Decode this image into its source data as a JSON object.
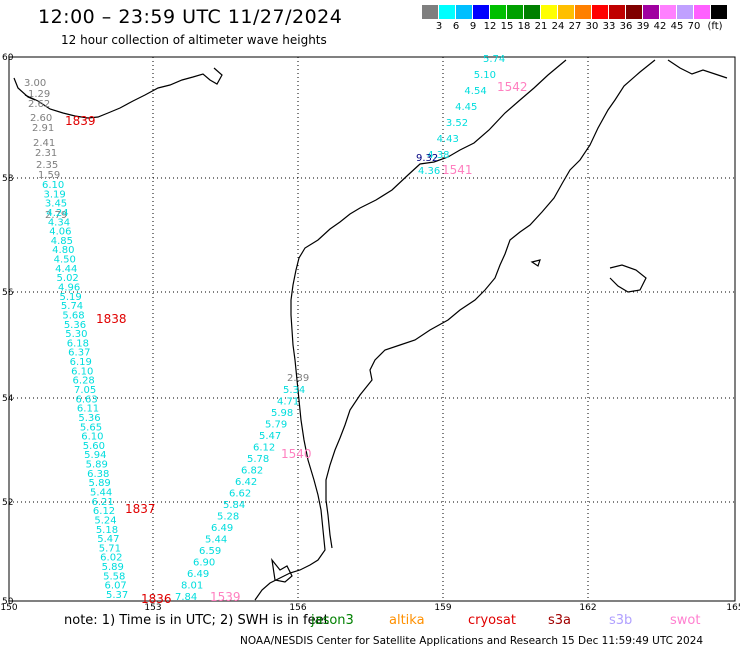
{
  "title": "12:00 – 23:59 UTC 11/27/2024",
  "subtitle": "12 hour collection of altimeter wave heights",
  "colorbar": {
    "colors": [
      "#7f7f7f",
      "#00ffff",
      "#00bfff",
      "#0000ff",
      "#00bf00",
      "#00a000",
      "#008000",
      "#ffff00",
      "#ffbf00",
      "#ff8000",
      "#ff0000",
      "#c00000",
      "#800000",
      "#a000a0",
      "#ff80ff",
      "#c0a0ff",
      "#ff60ff",
      "#000000"
    ],
    "labels": [
      "3",
      "6",
      "9",
      "12",
      "15",
      "18",
      "21",
      "24",
      "27",
      "30",
      "33",
      "36",
      "39",
      "42",
      "45",
      "70",
      "(ft)"
    ]
  },
  "axes": {
    "x_ticks": [
      "150",
      "153",
      "156",
      "159",
      "162",
      "165"
    ],
    "y_ticks": [
      "50",
      "52",
      "54",
      "56",
      "58",
      "60"
    ]
  },
  "tracks": [
    {
      "color": "#7f7f7f",
      "values": [
        "3.00",
        "1.29",
        "2.62",
        "2.60",
        "2.91",
        "2.41",
        "2.31",
        "2.35",
        "1.59",
        "2.79",
        "2.39"
      ]
    },
    {
      "color": "#00dddd",
      "values": [
        "6.10",
        "3.19",
        "3.45",
        "4.24",
        "4.34",
        "4.06",
        "4.85",
        "4.80",
        "4.50",
        "4.44",
        "5.02",
        "4.96",
        "5.19",
        "5.74",
        "5.68",
        "5.36",
        "5.30",
        "6.18",
        "6.37",
        "6.19",
        "6.10",
        "6.28",
        "7.05",
        "6.63",
        "6.11",
        "5.36",
        "5.65",
        "6.10",
        "5.60",
        "5.94",
        "5.89",
        "6.38",
        "5.89",
        "5.44",
        "6.21",
        "6.12",
        "5.24",
        "5.18",
        "5.47",
        "5.71",
        "6.02",
        "5.89",
        "5.58",
        "6.07",
        "5.37",
        "5.74",
        "5.10",
        "4.54",
        "4.45",
        "3.52",
        "4.43",
        "4.38",
        "4.36",
        "5.34",
        "4.71",
        "5.98",
        "5.79",
        "5.47",
        "6.12",
        "5.78",
        "6.82",
        "6.42",
        "6.62",
        "5.84",
        "5.28",
        "6.49",
        "5.44",
        "6.59",
        "6.90",
        "6.49",
        "8.01",
        "7.84"
      ]
    },
    {
      "color": "#000080",
      "values": [
        "9.32"
      ]
    }
  ],
  "time_markers": [
    {
      "label": "1839",
      "color": "#e00000"
    },
    {
      "label": "1838",
      "color": "#e00000"
    },
    {
      "label": "1837",
      "color": "#e00000"
    },
    {
      "label": "1836",
      "color": "#e00000"
    },
    {
      "label": "1542",
      "color": "#ff80c0"
    },
    {
      "label": "1541",
      "color": "#ff80c0"
    },
    {
      "label": "1540",
      "color": "#ff80c0"
    },
    {
      "label": "1539",
      "color": "#ff80c0"
    }
  ],
  "footer": {
    "note": "note:  1) Time is in UTC;  2) SWH is in feet",
    "satellites": [
      {
        "name": "jason3",
        "color": "#008000"
      },
      {
        "name": "altika",
        "color": "#ff9000"
      },
      {
        "name": "cryosat",
        "color": "#e00000"
      },
      {
        "name": "s3a",
        "color": "#a00000"
      },
      {
        "name": "s3b",
        "color": "#b0a0ff"
      },
      {
        "name": "swot",
        "color": "#ff80d0"
      }
    ],
    "credit": "NOAA/NESDIS Center for Satellite Applications and Research    15 Dec 11:59:49 UTC 2024"
  }
}
